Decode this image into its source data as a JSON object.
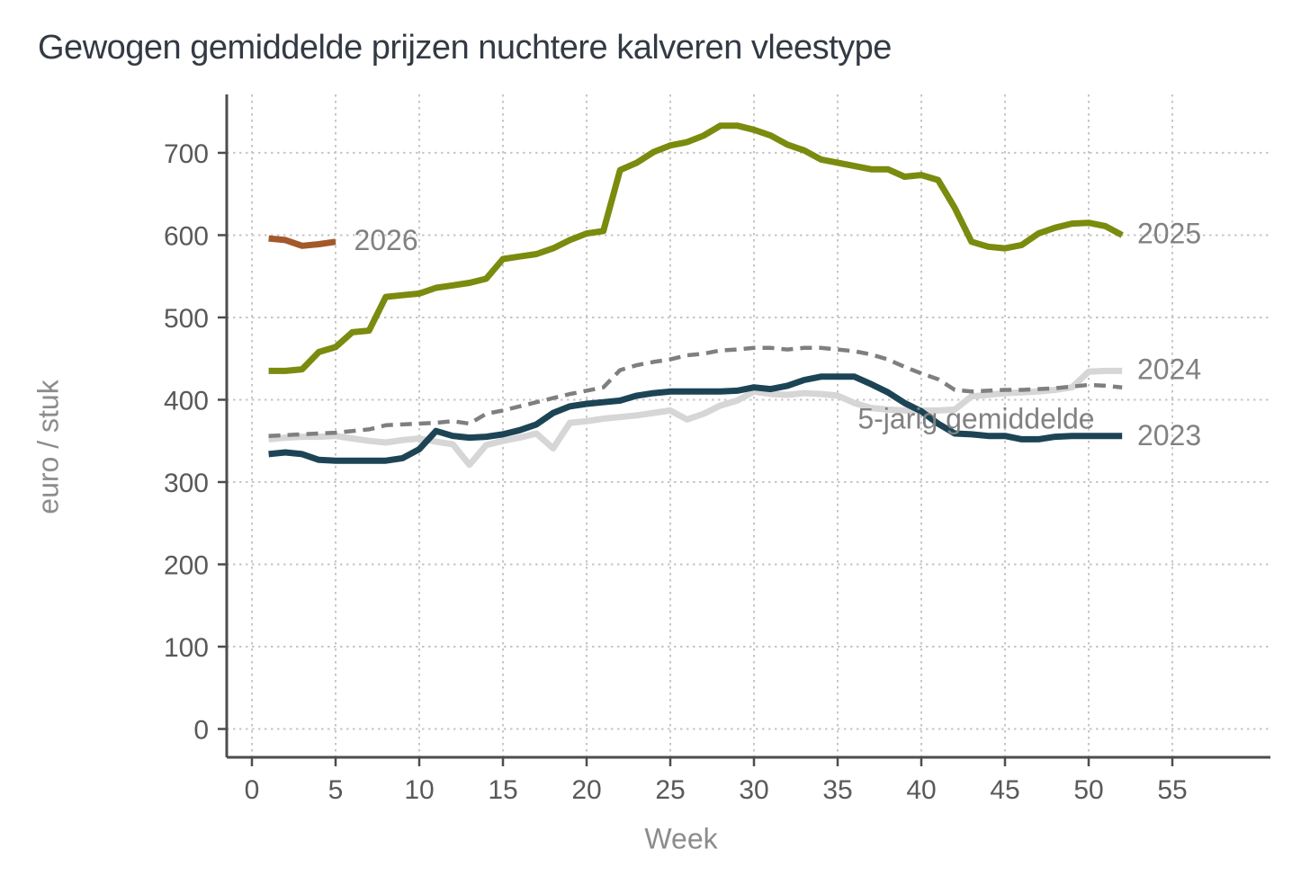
{
  "chart_data": {
    "type": "line",
    "title": "Gewogen gemiddelde prijzen nuchtere kalveren vleestype",
    "xlabel": "Week",
    "ylabel": "euro / stuk",
    "x_ticks": [
      0,
      5,
      10,
      15,
      20,
      25,
      30,
      35,
      40,
      45,
      50,
      55
    ],
    "y_ticks": [
      0,
      100,
      200,
      300,
      400,
      500,
      600,
      700
    ],
    "xlim": [
      0,
      60
    ],
    "ylim": [
      0,
      770
    ],
    "grid": "dotted",
    "legend_position": "inline-labels",
    "colors": {
      "background": "#ffffff",
      "gridline": "#c6c6c6",
      "axis": "#4d4d4d",
      "tick_label": "#595959",
      "axis_title": "#8c8c8c",
      "series_label": "#818181",
      "title": "#333a44"
    },
    "series": [
      {
        "name": "2024",
        "color": "#d6d6d6",
        "style": "solid",
        "x_start": 1,
        "values": [
          352,
          354,
          355,
          355,
          356,
          353,
          350,
          348,
          351,
          353,
          349,
          346,
          321,
          345,
          350,
          354,
          359,
          341,
          372,
          374,
          377,
          379,
          381,
          384,
          387,
          376,
          383,
          393,
          399,
          410,
          407,
          406,
          408,
          407,
          405,
          396,
          390,
          388,
          387,
          387,
          387,
          388,
          404,
          406,
          408,
          409,
          410,
          412,
          415,
          434,
          435,
          435
        ],
        "label": "2024",
        "label_pos": {
          "week": 52.9,
          "value": 437
        }
      },
      {
        "name": "5-jarig gemiddelde",
        "color": "#7f7f7f",
        "style": "dashed",
        "x_start": 1,
        "values": [
          356,
          357,
          358,
          359,
          360,
          362,
          364,
          369,
          370,
          371,
          372,
          374,
          371,
          383,
          387,
          392,
          397,
          402,
          407,
          411,
          415,
          436,
          442,
          446,
          449,
          454,
          456,
          460,
          461,
          463,
          463,
          461,
          463,
          463,
          461,
          459,
          455,
          449,
          440,
          432,
          425,
          412,
          410,
          411,
          412,
          412,
          413,
          414,
          416,
          418,
          417,
          415
        ],
        "label": "5-jarig gemiddelde",
        "label_pos": {
          "week": 36.2,
          "value": 377
        }
      },
      {
        "name": "2023",
        "color": "#1d4455",
        "style": "solid",
        "x_start": 1,
        "values": [
          334,
          336,
          334,
          327,
          326,
          326,
          326,
          326,
          329,
          340,
          362,
          356,
          354,
          355,
          358,
          363,
          370,
          384,
          392,
          395,
          397,
          399,
          405,
          408,
          410,
          410,
          410,
          410,
          411,
          415,
          413,
          417,
          424,
          428,
          428,
          428,
          419,
          409,
          396,
          386,
          371,
          359,
          358,
          356,
          356,
          352,
          352,
          355,
          356,
          356,
          356,
          356
        ],
        "label": "2023",
        "label_pos": {
          "week": 52.9,
          "value": 357
        }
      },
      {
        "name": "2025",
        "color": "#7a8b0e",
        "style": "solid",
        "x_start": 1,
        "values": [
          435,
          435,
          437,
          458,
          464,
          482,
          484,
          525,
          527,
          529,
          536,
          539,
          542,
          547,
          571,
          574,
          577,
          584,
          594,
          602,
          605,
          679,
          688,
          701,
          709,
          713,
          721,
          733,
          733,
          728,
          721,
          710,
          703,
          692,
          688,
          684,
          680,
          680,
          671,
          673,
          667,
          633,
          592,
          586,
          584,
          588,
          602,
          609,
          614,
          615,
          611,
          600
        ],
        "label": "2025",
        "label_pos": {
          "week": 52.9,
          "value": 602
        }
      },
      {
        "name": "2026",
        "color": "#a3592a",
        "style": "solid",
        "x_start": 1,
        "values": [
          596,
          594,
          587,
          589,
          592
        ],
        "label": "2026",
        "label_pos": {
          "week": 6.1,
          "value": 594
        }
      }
    ]
  }
}
